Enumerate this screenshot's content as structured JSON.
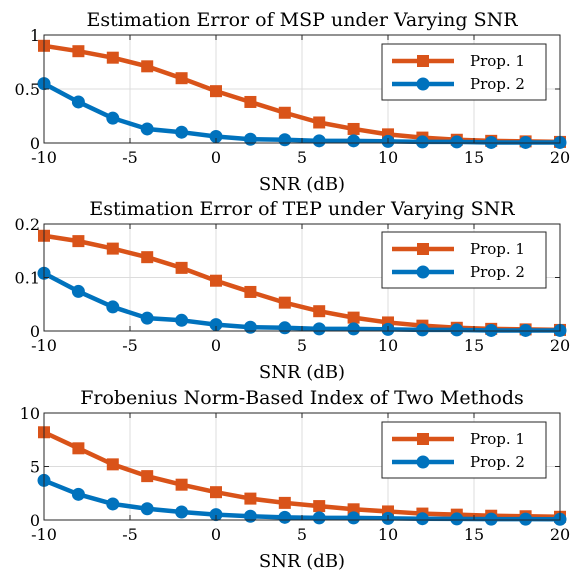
{
  "chart_data": [
    {
      "type": "line",
      "title": "Estimation Error of MSP under Varying SNR",
      "xlabel": "SNR (dB)",
      "ylabel": "",
      "xlim": [
        -10,
        20
      ],
      "ylim": [
        0,
        1
      ],
      "xticks": [
        "-10",
        "-5",
        "0",
        "5",
        "10",
        "15",
        "20"
      ],
      "yticks": [
        "0",
        "0.5",
        "1"
      ],
      "grid": true,
      "legend_position": "top-right",
      "x": [
        -10,
        -8,
        -6,
        -4,
        -2,
        0,
        2,
        4,
        6,
        8,
        10,
        12,
        14,
        16,
        18,
        20
      ],
      "series": [
        {
          "name": "Prop. 1",
          "color": "#D95319",
          "marker": "square",
          "values": [
            0.9,
            0.85,
            0.79,
            0.71,
            0.6,
            0.48,
            0.38,
            0.28,
            0.19,
            0.13,
            0.08,
            0.05,
            0.03,
            0.02,
            0.015,
            0.01
          ]
        },
        {
          "name": "Prop. 2",
          "color": "#0072BD",
          "marker": "circle",
          "values": [
            0.55,
            0.38,
            0.23,
            0.13,
            0.1,
            0.06,
            0.035,
            0.03,
            0.02,
            0.02,
            0.015,
            0.01,
            0.01,
            0.005,
            0.005,
            0.005
          ]
        }
      ]
    },
    {
      "type": "line",
      "title": "Estimation Error of TEP under Varying SNR",
      "xlabel": "SNR (dB)",
      "ylabel": "",
      "xlim": [
        -10,
        20
      ],
      "ylim": [
        0,
        0.2
      ],
      "xticks": [
        "-10",
        "-5",
        "0",
        "5",
        "10",
        "15",
        "20"
      ],
      "yticks": [
        "0",
        "0.1",
        "0.2"
      ],
      "grid": true,
      "legend_position": "top-right",
      "x": [
        -10,
        -8,
        -6,
        -4,
        -2,
        0,
        2,
        4,
        6,
        8,
        10,
        12,
        14,
        16,
        18,
        20
      ],
      "series": [
        {
          "name": "Prop. 1",
          "color": "#D95319",
          "marker": "square",
          "values": [
            0.178,
            0.168,
            0.154,
            0.138,
            0.118,
            0.094,
            0.073,
            0.053,
            0.037,
            0.025,
            0.016,
            0.01,
            0.006,
            0.004,
            0.003,
            0.002
          ]
        },
        {
          "name": "Prop. 2",
          "color": "#0072BD",
          "marker": "circle",
          "values": [
            0.108,
            0.074,
            0.045,
            0.024,
            0.02,
            0.012,
            0.007,
            0.006,
            0.004,
            0.004,
            0.003,
            0.002,
            0.002,
            0.001,
            0.001,
            0.001
          ]
        }
      ]
    },
    {
      "type": "line",
      "title": "Frobenius Norm-Based Index of Two Methods",
      "xlabel": "SNR (dB)",
      "ylabel": "",
      "xlim": [
        -10,
        20
      ],
      "ylim": [
        0,
        10
      ],
      "xticks": [
        "-10",
        "-5",
        "0",
        "5",
        "10",
        "15",
        "20"
      ],
      "yticks": [
        "0",
        "5",
        "10"
      ],
      "grid": true,
      "legend_position": "top-right",
      "x": [
        -10,
        -8,
        -6,
        -4,
        -2,
        0,
        2,
        4,
        6,
        8,
        10,
        12,
        14,
        16,
        18,
        20
      ],
      "series": [
        {
          "name": "Prop. 1",
          "color": "#D95319",
          "marker": "square",
          "values": [
            8.2,
            6.7,
            5.2,
            4.1,
            3.3,
            2.6,
            2.0,
            1.6,
            1.3,
            1.0,
            0.8,
            0.6,
            0.5,
            0.4,
            0.35,
            0.3
          ]
        },
        {
          "name": "Prop. 2",
          "color": "#0072BD",
          "marker": "circle",
          "values": [
            3.7,
            2.4,
            1.5,
            1.05,
            0.75,
            0.5,
            0.35,
            0.25,
            0.2,
            0.2,
            0.15,
            0.12,
            0.1,
            0.08,
            0.08,
            0.07
          ]
        }
      ]
    }
  ]
}
